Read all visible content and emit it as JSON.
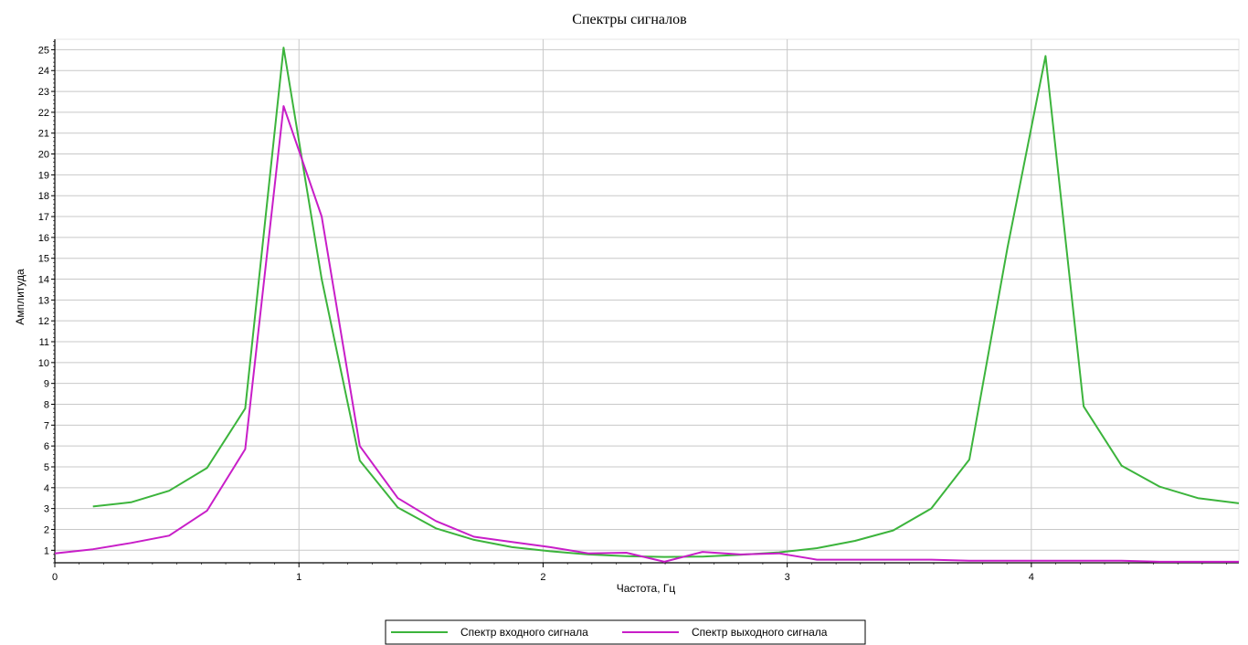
{
  "chart_data": {
    "type": "line",
    "title": "Спектры сигналов",
    "xlabel": "Частота, Гц",
    "ylabel": "Амплитуда",
    "xlim": [
      0,
      4.85
    ],
    "ylim": [
      0.4,
      25.5
    ],
    "xticks": [
      0,
      1,
      2,
      3,
      4
    ],
    "yticks": [
      1,
      2,
      3,
      4,
      5,
      6,
      7,
      8,
      9,
      10,
      11,
      12,
      13,
      14,
      15,
      16,
      17,
      18,
      19,
      20,
      21,
      22,
      23,
      24,
      25
    ],
    "grid": true,
    "legend_position": "bottom-center",
    "series": [
      {
        "name": "Спектр входного сигнала",
        "color": "#3cb43c",
        "points": [
          [
            0.156,
            3.1
          ],
          [
            0.312,
            3.3
          ],
          [
            0.468,
            3.85
          ],
          [
            0.624,
            4.95
          ],
          [
            0.78,
            7.8
          ],
          [
            0.937,
            25.1
          ],
          [
            1.093,
            14.0
          ],
          [
            1.249,
            5.3
          ],
          [
            1.405,
            3.05
          ],
          [
            1.561,
            2.05
          ],
          [
            1.717,
            1.5
          ],
          [
            1.873,
            1.15
          ],
          [
            2.029,
            0.95
          ],
          [
            2.185,
            0.8
          ],
          [
            2.341,
            0.72
          ],
          [
            2.497,
            0.68
          ],
          [
            2.653,
            0.7
          ],
          [
            2.809,
            0.78
          ],
          [
            2.966,
            0.9
          ],
          [
            3.122,
            1.1
          ],
          [
            3.278,
            1.45
          ],
          [
            3.434,
            1.95
          ],
          [
            3.59,
            3.0
          ],
          [
            3.746,
            5.35
          ],
          [
            3.902,
            15.5
          ],
          [
            4.058,
            24.7
          ],
          [
            4.214,
            7.9
          ],
          [
            4.37,
            5.05
          ],
          [
            4.526,
            4.05
          ],
          [
            4.682,
            3.5
          ],
          [
            4.85,
            3.25
          ]
        ]
      },
      {
        "name": "Спектр выходного сигнала",
        "color": "#c81ec8",
        "points": [
          [
            0,
            0.85
          ],
          [
            0.156,
            1.05
          ],
          [
            0.312,
            1.35
          ],
          [
            0.468,
            1.7
          ],
          [
            0.624,
            2.9
          ],
          [
            0.78,
            5.85
          ],
          [
            0.937,
            22.3
          ],
          [
            1.093,
            17.0
          ],
          [
            1.249,
            6.0
          ],
          [
            1.405,
            3.5
          ],
          [
            1.561,
            2.4
          ],
          [
            1.717,
            1.65
          ],
          [
            1.873,
            1.4
          ],
          [
            2.029,
            1.15
          ],
          [
            2.185,
            0.85
          ],
          [
            2.341,
            0.88
          ],
          [
            2.497,
            0.45
          ],
          [
            2.653,
            0.92
          ],
          [
            2.809,
            0.8
          ],
          [
            2.966,
            0.85
          ],
          [
            3.122,
            0.55
          ],
          [
            3.278,
            0.55
          ],
          [
            3.434,
            0.55
          ],
          [
            3.59,
            0.55
          ],
          [
            3.746,
            0.5
          ],
          [
            3.902,
            0.5
          ],
          [
            4.058,
            0.5
          ],
          [
            4.214,
            0.5
          ],
          [
            4.37,
            0.5
          ],
          [
            4.526,
            0.45
          ],
          [
            4.682,
            0.45
          ],
          [
            4.85,
            0.45
          ]
        ]
      }
    ]
  }
}
